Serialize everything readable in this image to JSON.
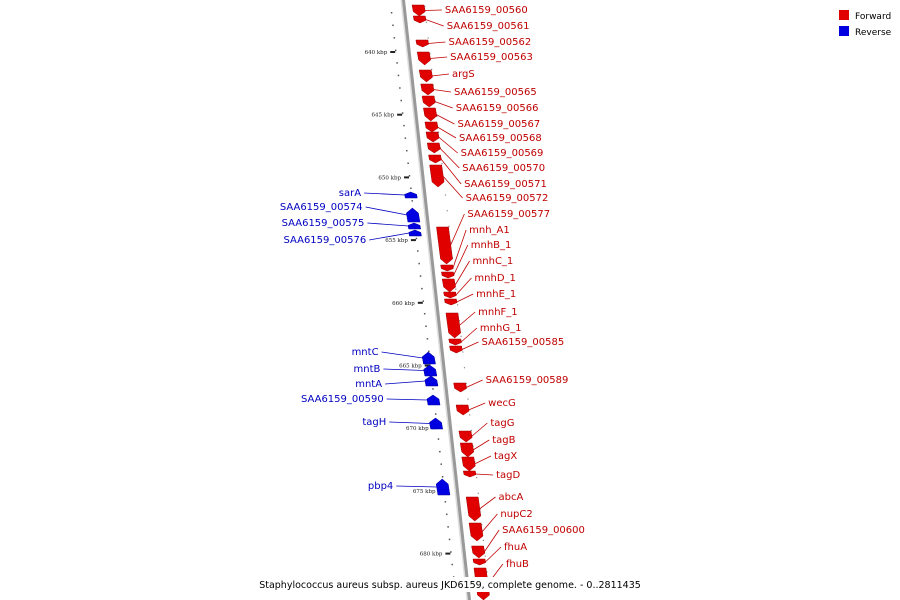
{
  "colors": {
    "forward": "#e00000",
    "reverse": "#0000e0",
    "forward_text": "#c00000",
    "reverse_text": "#0000c0",
    "axis": "#999999"
  },
  "legend": {
    "forward_label": "Forward",
    "reverse_label": "Reverse"
  },
  "caption": "Staphylococcus aureus subsp. aureus JKD6159, complete genome. - 0..2811435",
  "ticks": [
    {
      "label": "640 kbp",
      "kbp": 640
    },
    {
      "label": "645 kbp",
      "kbp": 645
    },
    {
      "label": "650 kbp",
      "kbp": 650
    },
    {
      "label": "655 kbp",
      "kbp": 655
    },
    {
      "label": "660 kbp",
      "kbp": 660
    },
    {
      "label": "665 kbp",
      "kbp": 665
    },
    {
      "label": "670 kbp",
      "kbp": 670
    },
    {
      "label": "675 kbp",
      "kbp": 675
    },
    {
      "label": "680 kbp",
      "kbp": 680
    }
  ],
  "genes": [
    {
      "name": "SAA6159_00560",
      "strand": "forward"
    },
    {
      "name": "SAA6159_00561",
      "strand": "forward"
    },
    {
      "name": "SAA6159_00562",
      "strand": "forward"
    },
    {
      "name": "SAA6159_00563",
      "strand": "forward"
    },
    {
      "name": "argS",
      "strand": "forward"
    },
    {
      "name": "SAA6159_00565",
      "strand": "forward"
    },
    {
      "name": "SAA6159_00566",
      "strand": "forward"
    },
    {
      "name": "SAA6159_00567",
      "strand": "forward"
    },
    {
      "name": "SAA6159_00568",
      "strand": "forward"
    },
    {
      "name": "SAA6159_00569",
      "strand": "forward"
    },
    {
      "name": "SAA6159_00570",
      "strand": "forward"
    },
    {
      "name": "SAA6159_00571",
      "strand": "forward"
    },
    {
      "name": "SAA6159_00572",
      "strand": "forward"
    },
    {
      "name": "sarA",
      "strand": "reverse"
    },
    {
      "name": "SAA6159_00574",
      "strand": "reverse"
    },
    {
      "name": "SAA6159_00575",
      "strand": "reverse"
    },
    {
      "name": "SAA6159_00576",
      "strand": "reverse"
    },
    {
      "name": "SAA6159_00577",
      "strand": "forward"
    },
    {
      "name": "mnh_A1",
      "strand": "forward"
    },
    {
      "name": "mnhB_1",
      "strand": "forward"
    },
    {
      "name": "mnhC_1",
      "strand": "forward"
    },
    {
      "name": "mnhD_1",
      "strand": "forward"
    },
    {
      "name": "mnhE_1",
      "strand": "forward"
    },
    {
      "name": "mnhF_1",
      "strand": "forward"
    },
    {
      "name": "mnhG_1",
      "strand": "forward"
    },
    {
      "name": "SAA6159_00585",
      "strand": "forward"
    },
    {
      "name": "mntC",
      "strand": "reverse"
    },
    {
      "name": "mntB",
      "strand": "reverse"
    },
    {
      "name": "mntA",
      "strand": "reverse"
    },
    {
      "name": "SAA6159_00589",
      "strand": "forward"
    },
    {
      "name": "SAA6159_00590",
      "strand": "reverse"
    },
    {
      "name": "wecG",
      "strand": "forward"
    },
    {
      "name": "tagH",
      "strand": "reverse"
    },
    {
      "name": "tagG",
      "strand": "forward"
    },
    {
      "name": "tagB",
      "strand": "forward"
    },
    {
      "name": "tagX",
      "strand": "forward"
    },
    {
      "name": "tagD",
      "strand": "forward"
    },
    {
      "name": "pbp4",
      "strand": "reverse"
    },
    {
      "name": "abcA",
      "strand": "forward"
    },
    {
      "name": "nupC2",
      "strand": "forward"
    },
    {
      "name": "SAA6159_00600",
      "strand": "forward"
    },
    {
      "name": "fhuA",
      "strand": "forward"
    },
    {
      "name": "fhuB",
      "strand": "forward"
    }
  ]
}
